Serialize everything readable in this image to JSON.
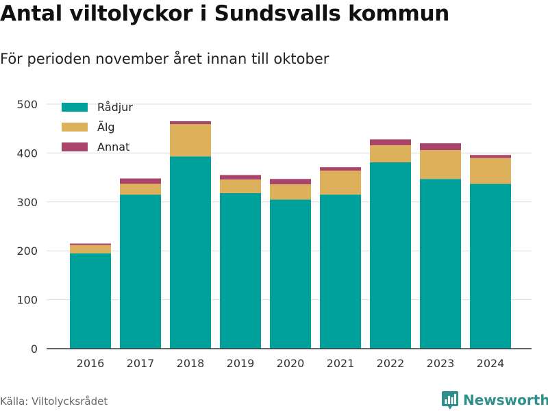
{
  "title": "Antal viltolyckor i Sundsvalls kommun",
  "subtitle": "För perioden november året innan till oktober",
  "source": "Källa: Viltolycksrådet",
  "brand": {
    "name": "Newsworthy",
    "icon": "bar-chart-logo-icon"
  },
  "colors": {
    "radjur": "#00a19a",
    "alg": "#ddb05c",
    "annat": "#a9446a",
    "grid": "#dcdcdc",
    "axis": "#333333",
    "brand": "#2f8f8a"
  },
  "chart_data": {
    "type": "bar",
    "stacked": true,
    "categories": [
      "2016",
      "2017",
      "2018",
      "2019",
      "2020",
      "2021",
      "2022",
      "2023",
      "2024"
    ],
    "series": [
      {
        "name": "Rådjur",
        "values": [
          195,
          315,
          393,
          318,
          305,
          315,
          381,
          347,
          337
        ]
      },
      {
        "name": "Älg",
        "values": [
          17,
          22,
          66,
          28,
          31,
          49,
          35,
          59,
          53
        ]
      },
      {
        "name": "Annat",
        "values": [
          3,
          11,
          6,
          9,
          11,
          7,
          12,
          14,
          6
        ]
      }
    ],
    "ylim": [
      0,
      500
    ],
    "yticks": [
      0,
      100,
      200,
      300,
      400,
      500
    ],
    "grid": true,
    "legend_position": "top-left"
  }
}
